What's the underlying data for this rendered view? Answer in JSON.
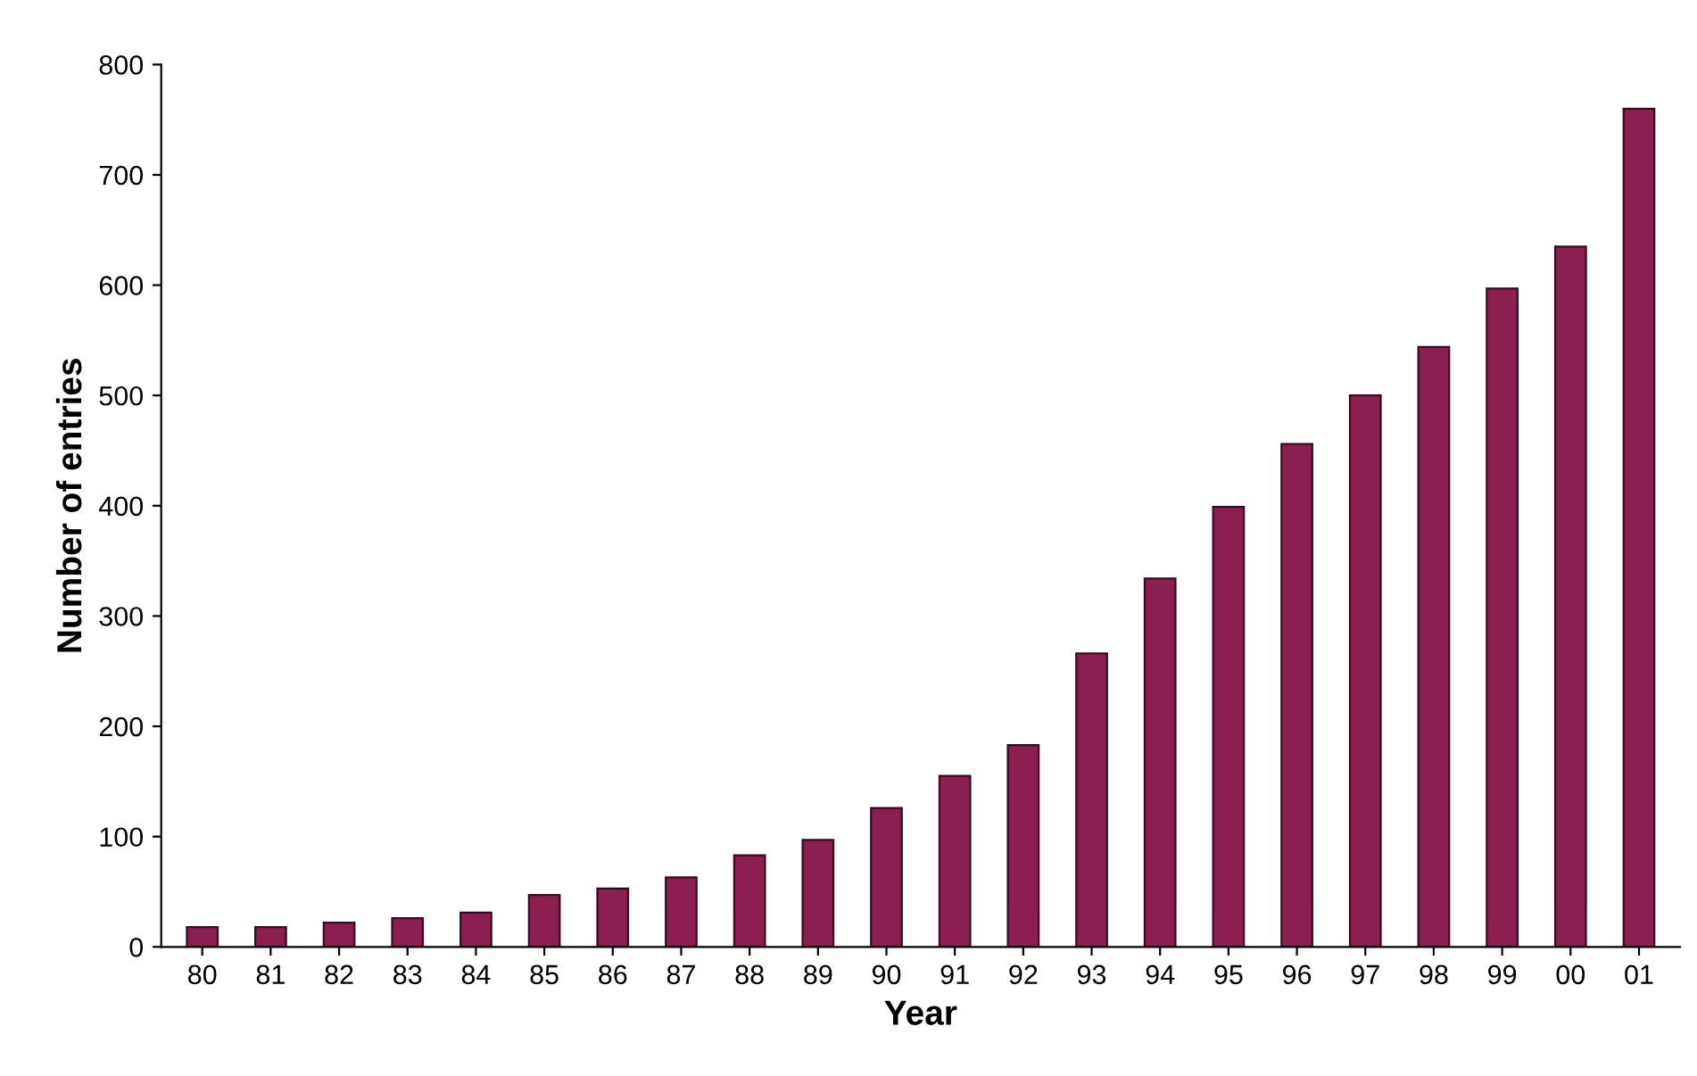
{
  "chart_data": {
    "type": "bar",
    "xlabel": "Year",
    "ylabel": "Number of entries",
    "categories": [
      "80",
      "81",
      "82",
      "83",
      "84",
      "85",
      "86",
      "87",
      "88",
      "89",
      "90",
      "91",
      "92",
      "93",
      "94",
      "95",
      "96",
      "97",
      "98",
      "99",
      "00",
      "01"
    ],
    "values": [
      18,
      18,
      22,
      26,
      31,
      47,
      53,
      63,
      83,
      97,
      126,
      155,
      183,
      266,
      334,
      399,
      456,
      500,
      544,
      597,
      635,
      760
    ],
    "color": "#8b1f4f",
    "ylim": [
      0,
      800
    ],
    "yticks": [
      0,
      100,
      200,
      300,
      400,
      500,
      600,
      700,
      800
    ],
    "grid": false,
    "legend": false
  }
}
